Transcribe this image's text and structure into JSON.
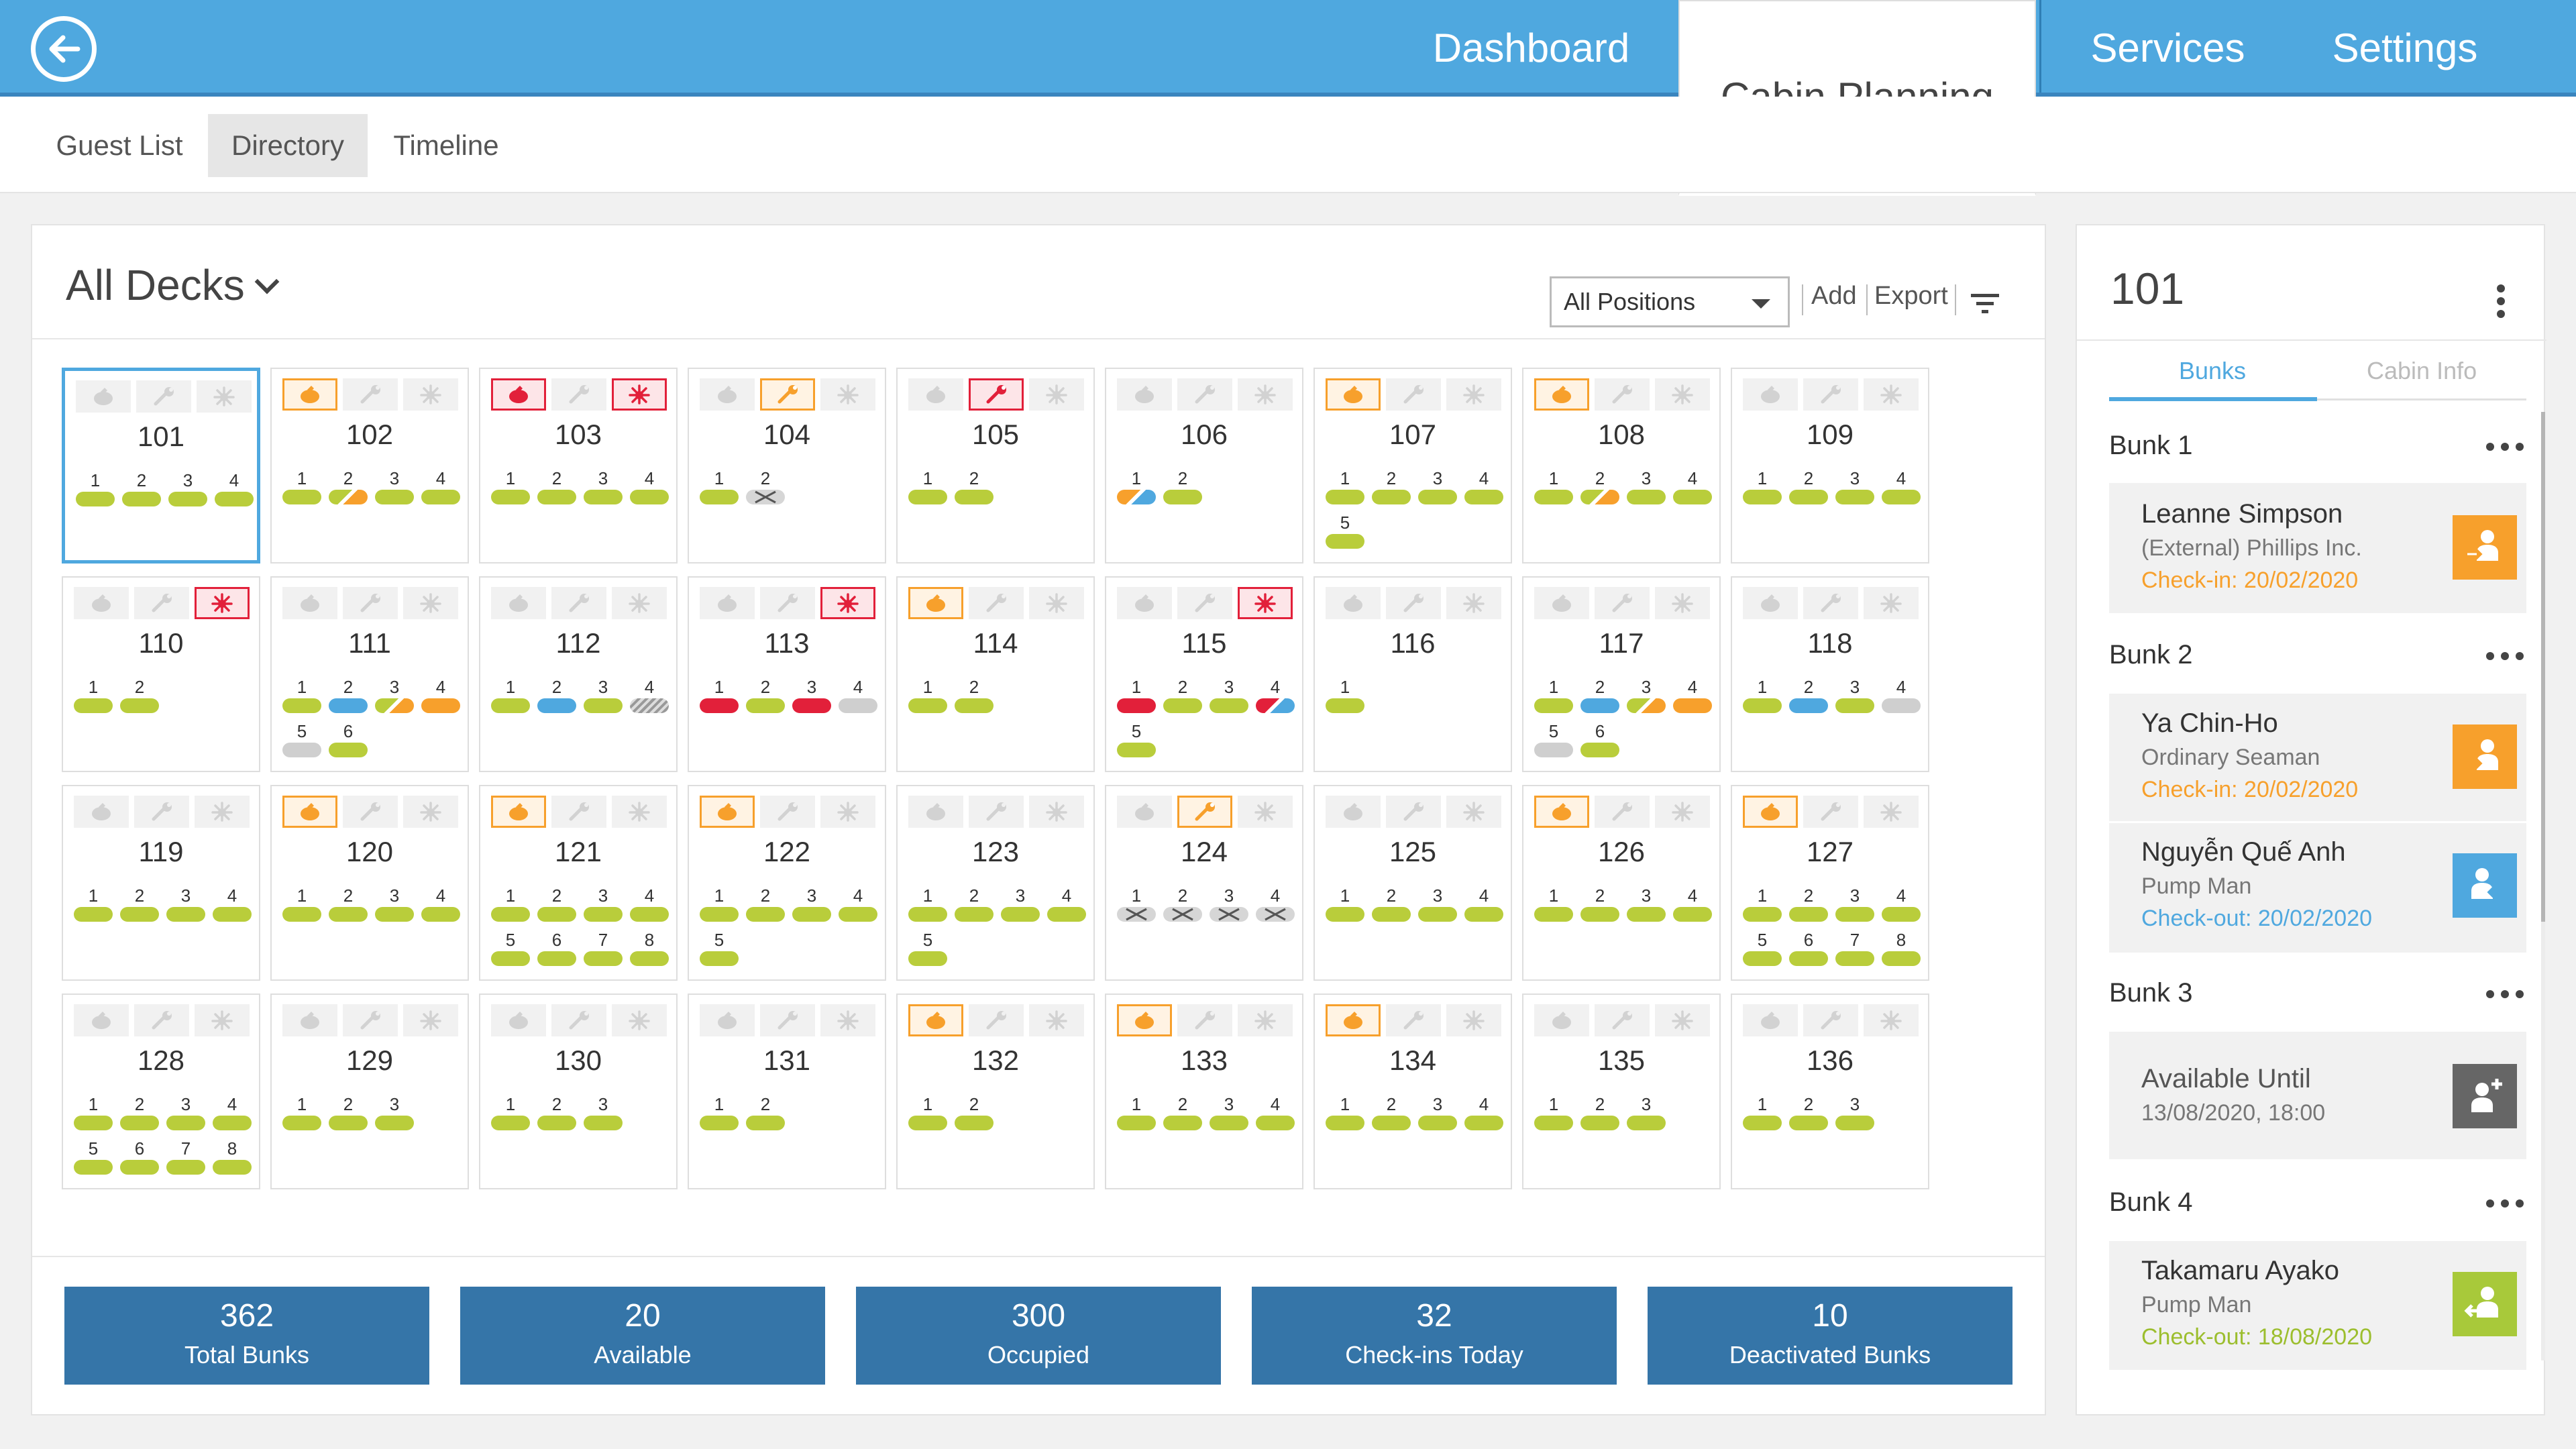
{
  "nav": {
    "back_icon": "arrow-left-circle-icon",
    "items": [
      {
        "label": "Dashboard",
        "active": false
      },
      {
        "label": "Cabin Planning",
        "active": true
      },
      {
        "label": "Services",
        "active": false
      },
      {
        "label": "Settings",
        "active": false
      }
    ]
  },
  "subnav": {
    "items": [
      {
        "label": "Guest List",
        "active": false
      },
      {
        "label": "Directory",
        "active": true
      },
      {
        "label": "Timeline",
        "active": false
      }
    ]
  },
  "main": {
    "deck_select": "All Decks",
    "position_select": "All Positions",
    "add_label": "Add",
    "export_label": "Export"
  },
  "colors": {
    "available": "#b9cd3b",
    "occupied_blue": "#4fa8df",
    "orange": "#f7a02c",
    "red": "#e2203a",
    "grey": "#cfcfcf"
  },
  "cabins": [
    {
      "num": "101",
      "selected": true,
      "icons": [
        "",
        "",
        ""
      ],
      "bunks": [
        {
          "n": "1",
          "s": "g"
        },
        {
          "n": "2",
          "s": "g"
        },
        {
          "n": "3",
          "s": "g"
        },
        {
          "n": "4",
          "s": "g"
        }
      ]
    },
    {
      "num": "102",
      "icons": [
        "clean",
        "",
        ""
      ],
      "bunks": [
        {
          "n": "1",
          "s": "g"
        },
        {
          "n": "2",
          "s": "go"
        },
        {
          "n": "3",
          "s": "g"
        },
        {
          "n": "4",
          "s": "g"
        }
      ]
    },
    {
      "num": "103",
      "icons": [
        "clean-red",
        "",
        "bug-red"
      ],
      "bunks": [
        {
          "n": "1",
          "s": "g"
        },
        {
          "n": "2",
          "s": "g"
        },
        {
          "n": "3",
          "s": "g"
        },
        {
          "n": "4",
          "s": "g"
        }
      ]
    },
    {
      "num": "104",
      "icons": [
        "",
        "wrench",
        ""
      ],
      "bunks": [
        {
          "n": "1",
          "s": "g"
        },
        {
          "n": "2",
          "s": "x"
        }
      ]
    },
    {
      "num": "105",
      "icons": [
        "",
        "wrench-red",
        ""
      ],
      "bunks": [
        {
          "n": "1",
          "s": "g"
        },
        {
          "n": "2",
          "s": "g"
        }
      ]
    },
    {
      "num": "106",
      "icons": [
        "",
        "",
        ""
      ],
      "bunks": [
        {
          "n": "1",
          "s": "ob"
        },
        {
          "n": "2",
          "s": "g"
        }
      ]
    },
    {
      "num": "107",
      "icons": [
        "clean",
        "",
        ""
      ],
      "bunks": [
        {
          "n": "1",
          "s": "g"
        },
        {
          "n": "2",
          "s": "g"
        },
        {
          "n": "3",
          "s": "g"
        },
        {
          "n": "4",
          "s": "g"
        },
        {
          "n": "5",
          "s": "g"
        }
      ]
    },
    {
      "num": "108",
      "icons": [
        "clean",
        "",
        ""
      ],
      "bunks": [
        {
          "n": "1",
          "s": "g"
        },
        {
          "n": "2",
          "s": "go"
        },
        {
          "n": "3",
          "s": "g"
        },
        {
          "n": "4",
          "s": "g"
        }
      ]
    },
    {
      "num": "109",
      "icons": [
        "",
        "",
        ""
      ],
      "bunks": [
        {
          "n": "1",
          "s": "g"
        },
        {
          "n": "2",
          "s": "g"
        },
        {
          "n": "3",
          "s": "g"
        },
        {
          "n": "4",
          "s": "g"
        }
      ]
    },
    {
      "num": "110",
      "icons": [
        "",
        "",
        "bug-red"
      ],
      "bunks": [
        {
          "n": "1",
          "s": "g"
        },
        {
          "n": "2",
          "s": "g"
        }
      ]
    },
    {
      "num": "111",
      "icons": [
        "",
        "",
        ""
      ],
      "bunks": [
        {
          "n": "1",
          "s": "g"
        },
        {
          "n": "2",
          "s": "b"
        },
        {
          "n": "3",
          "s": "go"
        },
        {
          "n": "4",
          "s": "o"
        },
        {
          "n": "5",
          "s": "gr"
        },
        {
          "n": "6",
          "s": "g"
        }
      ]
    },
    {
      "num": "112",
      "icons": [
        "",
        "",
        ""
      ],
      "bunks": [
        {
          "n": "1",
          "s": "g"
        },
        {
          "n": "2",
          "s": "b"
        },
        {
          "n": "3",
          "s": "g"
        },
        {
          "n": "4",
          "s": "h"
        }
      ]
    },
    {
      "num": "113",
      "icons": [
        "",
        "",
        "bug-red"
      ],
      "bunks": [
        {
          "n": "1",
          "s": "r"
        },
        {
          "n": "2",
          "s": "g"
        },
        {
          "n": "3",
          "s": "r"
        },
        {
          "n": "4",
          "s": "gr"
        }
      ]
    },
    {
      "num": "114",
      "icons": [
        "clean",
        "",
        ""
      ],
      "bunks": [
        {
          "n": "1",
          "s": "g"
        },
        {
          "n": "2",
          "s": "g"
        }
      ]
    },
    {
      "num": "115",
      "icons": [
        "",
        "",
        "bug-red"
      ],
      "bunks": [
        {
          "n": "1",
          "s": "r"
        },
        {
          "n": "2",
          "s": "g"
        },
        {
          "n": "3",
          "s": "g"
        },
        {
          "n": "4",
          "s": "rb"
        },
        {
          "n": "5",
          "s": "g"
        }
      ]
    },
    {
      "num": "116",
      "icons": [
        "",
        "",
        ""
      ],
      "bunks": [
        {
          "n": "1",
          "s": "g"
        }
      ]
    },
    {
      "num": "117",
      "icons": [
        "",
        "",
        ""
      ],
      "bunks": [
        {
          "n": "1",
          "s": "g"
        },
        {
          "n": "2",
          "s": "b"
        },
        {
          "n": "3",
          "s": "go"
        },
        {
          "n": "4",
          "s": "o"
        },
        {
          "n": "5",
          "s": "gr"
        },
        {
          "n": "6",
          "s": "g"
        }
      ]
    },
    {
      "num": "118",
      "icons": [
        "",
        "",
        ""
      ],
      "bunks": [
        {
          "n": "1",
          "s": "g"
        },
        {
          "n": "2",
          "s": "b"
        },
        {
          "n": "3",
          "s": "g"
        },
        {
          "n": "4",
          "s": "gr"
        }
      ]
    },
    {
      "num": "119",
      "icons": [
        "",
        "",
        ""
      ],
      "bunks": [
        {
          "n": "1",
          "s": "g"
        },
        {
          "n": "2",
          "s": "g"
        },
        {
          "n": "3",
          "s": "g"
        },
        {
          "n": "4",
          "s": "g"
        }
      ]
    },
    {
      "num": "120",
      "icons": [
        "clean",
        "",
        ""
      ],
      "bunks": [
        {
          "n": "1",
          "s": "g"
        },
        {
          "n": "2",
          "s": "g"
        },
        {
          "n": "3",
          "s": "g"
        },
        {
          "n": "4",
          "s": "g"
        }
      ]
    },
    {
      "num": "121",
      "icons": [
        "clean",
        "",
        ""
      ],
      "bunks": [
        {
          "n": "1",
          "s": "g"
        },
        {
          "n": "2",
          "s": "g"
        },
        {
          "n": "3",
          "s": "g"
        },
        {
          "n": "4",
          "s": "g"
        },
        {
          "n": "5",
          "s": "g"
        },
        {
          "n": "6",
          "s": "g"
        },
        {
          "n": "7",
          "s": "g"
        },
        {
          "n": "8",
          "s": "g"
        }
      ]
    },
    {
      "num": "122",
      "icons": [
        "clean",
        "",
        ""
      ],
      "bunks": [
        {
          "n": "1",
          "s": "g"
        },
        {
          "n": "2",
          "s": "g"
        },
        {
          "n": "3",
          "s": "g"
        },
        {
          "n": "4",
          "s": "g"
        },
        {
          "n": "5",
          "s": "g"
        }
      ]
    },
    {
      "num": "123",
      "icons": [
        "",
        "",
        ""
      ],
      "bunks": [
        {
          "n": "1",
          "s": "g"
        },
        {
          "n": "2",
          "s": "g"
        },
        {
          "n": "3",
          "s": "g"
        },
        {
          "n": "4",
          "s": "g"
        },
        {
          "n": "5",
          "s": "g"
        }
      ]
    },
    {
      "num": "124",
      "icons": [
        "",
        "wrench",
        ""
      ],
      "bunks": [
        {
          "n": "1",
          "s": "x"
        },
        {
          "n": "2",
          "s": "x"
        },
        {
          "n": "3",
          "s": "x"
        },
        {
          "n": "4",
          "s": "x"
        }
      ]
    },
    {
      "num": "125",
      "icons": [
        "",
        "",
        ""
      ],
      "bunks": [
        {
          "n": "1",
          "s": "g"
        },
        {
          "n": "2",
          "s": "g"
        },
        {
          "n": "3",
          "s": "g"
        },
        {
          "n": "4",
          "s": "g"
        }
      ]
    },
    {
      "num": "126",
      "icons": [
        "clean",
        "",
        ""
      ],
      "bunks": [
        {
          "n": "1",
          "s": "g"
        },
        {
          "n": "2",
          "s": "g"
        },
        {
          "n": "3",
          "s": "g"
        },
        {
          "n": "4",
          "s": "g"
        }
      ]
    },
    {
      "num": "127",
      "icons": [
        "clean",
        "",
        ""
      ],
      "bunks": [
        {
          "n": "1",
          "s": "g"
        },
        {
          "n": "2",
          "s": "g"
        },
        {
          "n": "3",
          "s": "g"
        },
        {
          "n": "4",
          "s": "g"
        },
        {
          "n": "5",
          "s": "g"
        },
        {
          "n": "6",
          "s": "g"
        },
        {
          "n": "7",
          "s": "g"
        },
        {
          "n": "8",
          "s": "g"
        }
      ]
    },
    {
      "num": "128",
      "icons": [
        "",
        "",
        ""
      ],
      "bunks": [
        {
          "n": "1",
          "s": "g"
        },
        {
          "n": "2",
          "s": "g"
        },
        {
          "n": "3",
          "s": "g"
        },
        {
          "n": "4",
          "s": "g"
        },
        {
          "n": "5",
          "s": "g"
        },
        {
          "n": "6",
          "s": "g"
        },
        {
          "n": "7",
          "s": "g"
        },
        {
          "n": "8",
          "s": "g"
        }
      ]
    },
    {
      "num": "129",
      "icons": [
        "",
        "",
        ""
      ],
      "bunks": [
        {
          "n": "1",
          "s": "g"
        },
        {
          "n": "2",
          "s": "g"
        },
        {
          "n": "3",
          "s": "g"
        }
      ]
    },
    {
      "num": "130",
      "icons": [
        "",
        "",
        ""
      ],
      "bunks": [
        {
          "n": "1",
          "s": "g"
        },
        {
          "n": "2",
          "s": "g"
        },
        {
          "n": "3",
          "s": "g"
        }
      ]
    },
    {
      "num": "131",
      "icons": [
        "",
        "",
        ""
      ],
      "bunks": [
        {
          "n": "1",
          "s": "g"
        },
        {
          "n": "2",
          "s": "g"
        }
      ]
    },
    {
      "num": "132",
      "icons": [
        "clean",
        "",
        ""
      ],
      "bunks": [
        {
          "n": "1",
          "s": "g"
        },
        {
          "n": "2",
          "s": "g"
        }
      ]
    },
    {
      "num": "133",
      "icons": [
        "clean",
        "",
        ""
      ],
      "bunks": [
        {
          "n": "1",
          "s": "g"
        },
        {
          "n": "2",
          "s": "g"
        },
        {
          "n": "3",
          "s": "g"
        },
        {
          "n": "4",
          "s": "g"
        }
      ]
    },
    {
      "num": "134",
      "icons": [
        "clean",
        "",
        ""
      ],
      "bunks": [
        {
          "n": "1",
          "s": "g"
        },
        {
          "n": "2",
          "s": "g"
        },
        {
          "n": "3",
          "s": "g"
        },
        {
          "n": "4",
          "s": "g"
        }
      ]
    },
    {
      "num": "135",
      "icons": [
        "",
        "",
        ""
      ],
      "bunks": [
        {
          "n": "1",
          "s": "g"
        },
        {
          "n": "2",
          "s": "g"
        },
        {
          "n": "3",
          "s": "g"
        }
      ]
    },
    {
      "num": "136",
      "icons": [
        "",
        "",
        ""
      ],
      "bunks": [
        {
          "n": "1",
          "s": "g"
        },
        {
          "n": "2",
          "s": "g"
        },
        {
          "n": "3",
          "s": "g"
        }
      ]
    }
  ],
  "stats": [
    {
      "value": "362",
      "label": "Total Bunks"
    },
    {
      "value": "20",
      "label": "Available"
    },
    {
      "value": "300",
      "label": "Occupied"
    },
    {
      "value": "32",
      "label": "Check-ins Today"
    },
    {
      "value": "10",
      "label": "Deactivated Bunks"
    }
  ],
  "side": {
    "title": "101",
    "tabs": [
      {
        "label": "Bunks",
        "active": true
      },
      {
        "label": "Cabin Info",
        "active": false
      }
    ],
    "bunks": [
      {
        "title": "Bunk 1",
        "entries": [
          {
            "name": "Leanne Simpson",
            "sub": "(External) Phillips Inc.",
            "date": "Check-in: 20/02/2020",
            "kind": "checkin"
          }
        ]
      },
      {
        "title": "Bunk 2",
        "entries": [
          {
            "name": "Ya Chin-Ho",
            "sub": "Ordinary Seaman",
            "date": "Check-in: 20/02/2020",
            "kind": "checkin"
          },
          {
            "name": "Nguyễn Quế Anh",
            "sub": "Pump Man",
            "date": "Check-out: 20/02/2020",
            "kind": "checkout-blue"
          }
        ]
      },
      {
        "title": "Bunk 3",
        "entries": [
          {
            "name": "Available Until",
            "sub": "13/08/2020, 18:00",
            "date": "",
            "kind": "available"
          }
        ]
      },
      {
        "title": "Bunk 4",
        "entries": [
          {
            "name": "Takamaru Ayako",
            "sub": "Pump Man",
            "date": "Check-out: 18/08/2020",
            "kind": "checkout-green"
          }
        ]
      }
    ]
  }
}
